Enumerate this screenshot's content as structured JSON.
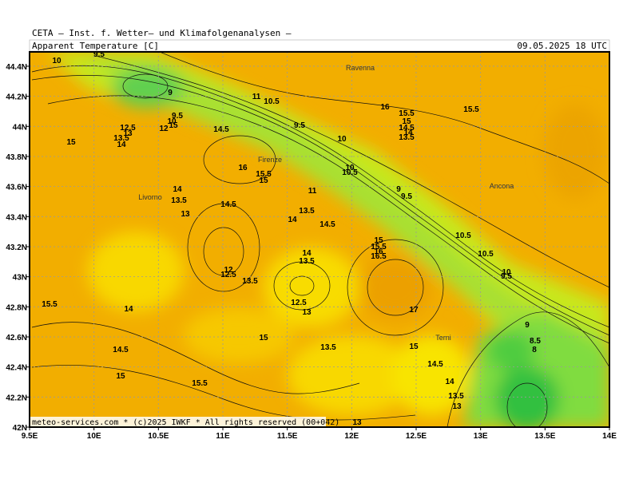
{
  "header": {
    "title": "CETA — Inst. f. Wetter— und Klimafolgenanalysen —",
    "variable": "Apparent Temperature [C]",
    "datetime": "09.05.2025 18 UTC"
  },
  "footer": {
    "copyright": "meteo-services.com * (c)2025 IWKF * All rights reserved (00+042)"
  },
  "map": {
    "x_axis": {
      "ticks": [
        "9.5E",
        "10E",
        "10.5E",
        "11E",
        "11.5E",
        "12E",
        "12.5E",
        "13E",
        "13.5E",
        "14E"
      ]
    },
    "y_axis": {
      "ticks": [
        "42N",
        "42.2N",
        "42.4N",
        "42.6N",
        "42.8N",
        "43N",
        "43.2N",
        "43.4N",
        "43.6N",
        "43.8N",
        "44N",
        "44.2N",
        "44.4N"
      ]
    },
    "cities": [
      "Ravenna",
      "Firenze",
      "Livorno",
      "Ancona",
      "Terni"
    ],
    "contour_labels": [
      "9.5",
      "10",
      "9",
      "11",
      "10.5",
      "9.5",
      "12.5",
      "13",
      "12",
      "9.5",
      "10",
      "15",
      "13.5",
      "14",
      "15",
      "14.5",
      "10",
      "16",
      "15.5",
      "15",
      "10",
      "10.5",
      "16",
      "15.5",
      "15",
      "14.5",
      "14",
      "13.5",
      "15.5",
      "11",
      "9",
      "9.5",
      "14",
      "13.5",
      "14.5",
      "13",
      "13.5",
      "14",
      "14.5",
      "10.5",
      "10.5",
      "15",
      "15.5",
      "16",
      "16.5",
      "14",
      "13.5",
      "12",
      "12.5",
      "13.5",
      "10",
      "9.5",
      "15.5",
      "14",
      "12.5",
      "13",
      "17",
      "9",
      "8.5",
      "8",
      "15",
      "14.5",
      "13.5",
      "15",
      "14.5",
      "15",
      "15.5",
      "14",
      "13.5",
      "13",
      "13"
    ]
  }
}
